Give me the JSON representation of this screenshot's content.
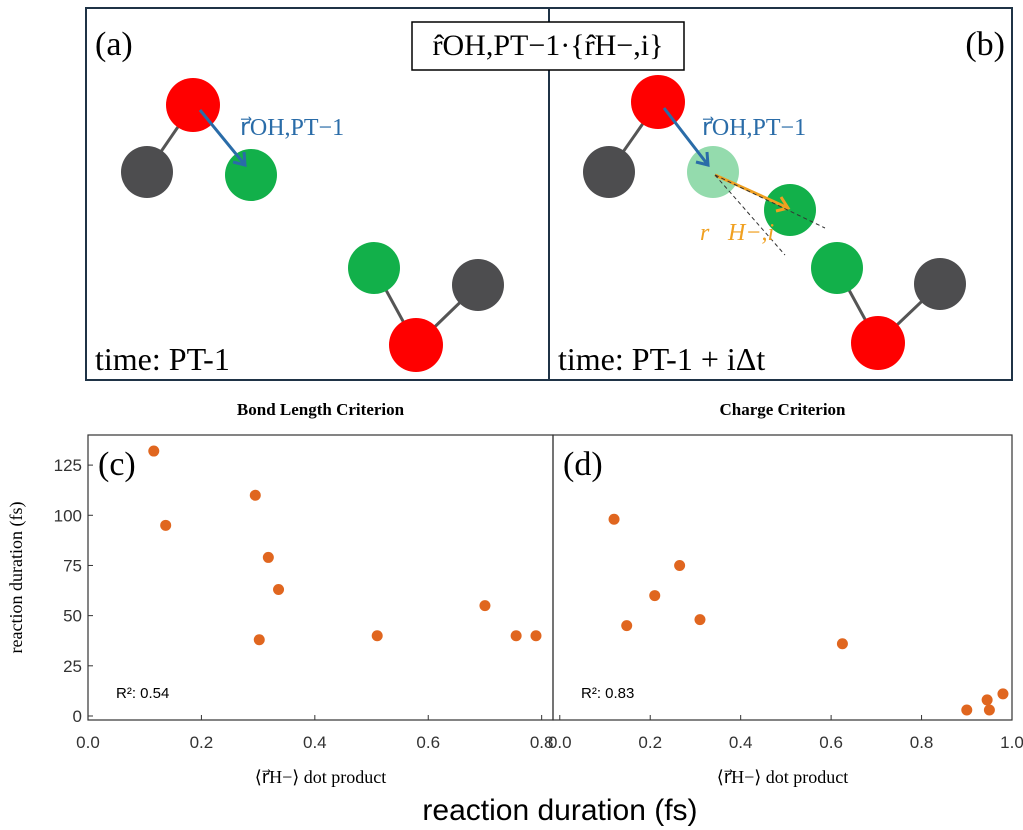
{
  "diagram": {
    "panel_a": "(a)",
    "panel_b": "(b)",
    "formula": "r̂OH,PT−1·{r̂H−,i}",
    "vector_oh_a": "r⃗OH,PT−1",
    "vector_oh_b": "r⃗OH,PT−1",
    "vector_h": "r⃗H−,i",
    "time_a": "time: PT-1",
    "time_b": "time: PT-1 + iΔt"
  },
  "chart_data": [
    {
      "type": "scatter",
      "title": "Bond Length Criterion",
      "panel_label": "(c)",
      "annotation": "R²: 0.54",
      "x_label": "⟨r⃗H−⟩ dot product",
      "y_label": "reaction duration (fs)",
      "color": "#e0661f",
      "x": [
        0.116,
        0.137,
        0.295,
        0.302,
        0.318,
        0.336,
        0.51,
        0.7,
        0.755,
        0.79
      ],
      "values": [
        132,
        95,
        110,
        38,
        79,
        63,
        40,
        55,
        40,
        40
      ],
      "xlim": [
        0,
        0.82
      ],
      "ylim": [
        -2,
        140
      ],
      "xticks": [
        {
          "value": 0,
          "label": "0.0"
        },
        0.2,
        0.4,
        0.6,
        0.8
      ],
      "yticks": [
        0,
        25,
        50,
        75,
        100,
        125
      ]
    },
    {
      "type": "scatter",
      "title": "Charge Criterion",
      "panel_label": "(d)",
      "annotation": "R²: 0.83",
      "x_label": "⟨r⃗H−⟩ dot product",
      "color": "#e0661f",
      "x": [
        0.12,
        0.148,
        0.21,
        0.265,
        0.31,
        0.625,
        0.9,
        0.945,
        0.95,
        0.98
      ],
      "values": [
        98,
        45,
        60,
        75,
        48,
        36,
        3,
        8,
        3,
        11
      ],
      "xlim": [
        -0.015,
        1.0
      ],
      "ylim": [
        -2,
        140
      ],
      "xticks": [
        {
          "value": 0,
          "label": "0.0"
        },
        0.2,
        0.4,
        0.6,
        0.8,
        {
          "value": 1,
          "label": "1.0"
        }
      ]
    }
  ],
  "footer": "reaction duration (fs)"
}
